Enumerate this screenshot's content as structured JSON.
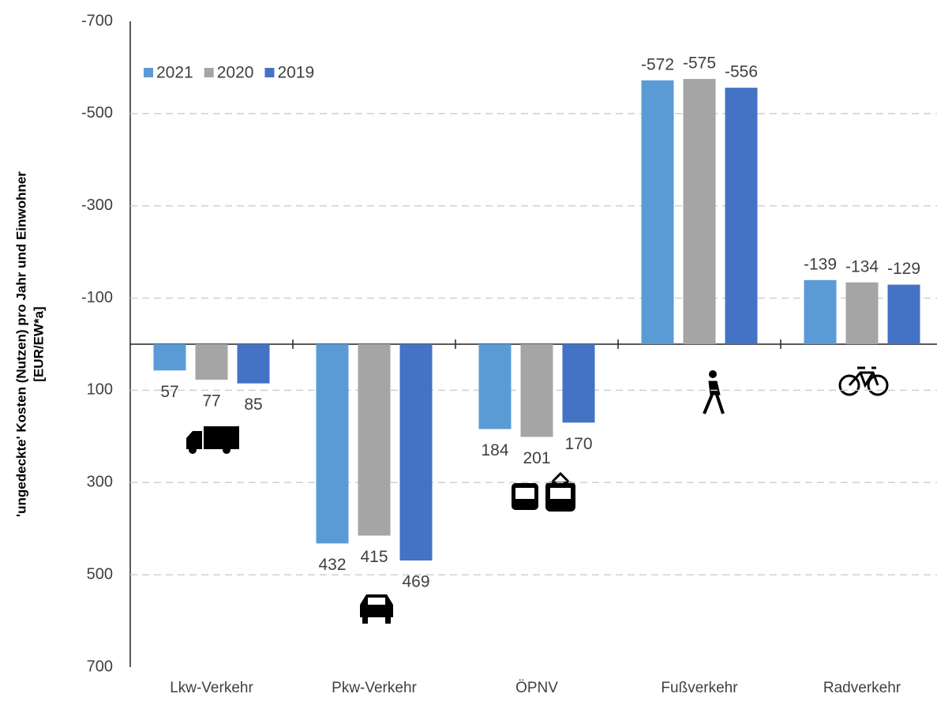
{
  "chart_data": {
    "type": "bar",
    "y_label": [
      "'ungedeckte' Kosten (Nutzen) pro Jahr und Einwohner",
      "[EUR/EW*a]"
    ],
    "categories": [
      "Lkw-Verkehr",
      "Pkw-Verkehr",
      "ÖPNV",
      "Fußverkehr",
      "Radverkehr"
    ],
    "series": [
      {
        "name": "2021",
        "color": "#5b9bd5",
        "values": [
          57,
          432,
          184,
          -572,
          -139
        ]
      },
      {
        "name": "2020",
        "color": "#a5a5a5",
        "values": [
          77,
          415,
          201,
          -575,
          -134
        ]
      },
      {
        "name": "2019",
        "color": "#4472c4",
        "values": [
          85,
          469,
          170,
          -556,
          -129
        ]
      }
    ],
    "ylim": [
      -700,
      700
    ],
    "y_inverted": true,
    "yticks": [
      -700,
      -500,
      -300,
      -100,
      100,
      300,
      500,
      700
    ],
    "grid": true,
    "legend": "top-left"
  }
}
